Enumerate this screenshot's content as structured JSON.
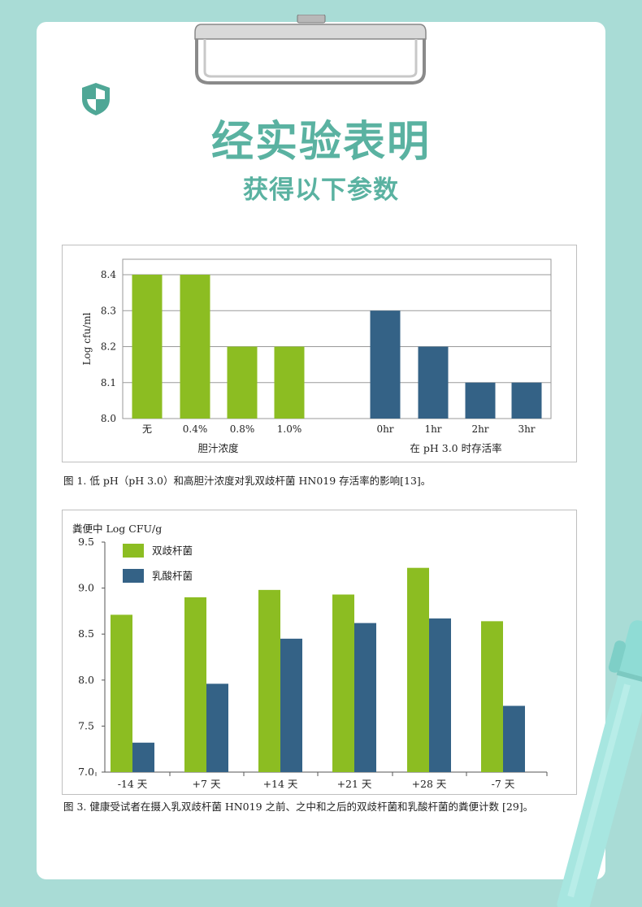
{
  "header": {
    "title": "经实验表明",
    "subtitle": "获得以下参数"
  },
  "figure1": {
    "caption": "图 1. 低 pH（pH 3.0）和高胆汁浓度对乳双歧杆菌 HN019 存活率的影响[13]。"
  },
  "figure3": {
    "caption": "图 3. 健康受试者在摄入乳双歧杆菌 HN019 之前、之中和之后的双歧杆菌和乳酸杆菌的粪便计数 [29]。"
  },
  "chart_data": [
    {
      "type": "bar",
      "ylabel": "Log cfu/ml",
      "ylim": [
        8.0,
        8.4
      ],
      "yticks": [
        "8.0",
        "8.1",
        "8.2",
        "8.3",
        "8.4"
      ],
      "grid": true,
      "groups": [
        {
          "label": "胆汁浓度",
          "color": "#8cbd22",
          "categories": [
            "无",
            "0.4%",
            "0.8%",
            "1.0%"
          ],
          "values": [
            8.4,
            8.4,
            8.2,
            8.2
          ]
        },
        {
          "label": "在 pH 3.0 时存活率",
          "color": "#346286",
          "categories": [
            "0hr",
            "1hr",
            "2hr",
            "3hr"
          ],
          "values": [
            8.3,
            8.2,
            8.1,
            8.1
          ]
        }
      ]
    },
    {
      "type": "bar",
      "ylabel": "粪便中 Log CFU/g",
      "ylim": [
        7.0,
        9.5
      ],
      "yticks": [
        "7.0",
        "7.5",
        "8.0",
        "8.5",
        "9.0",
        "9.5"
      ],
      "legend_position": "top-left",
      "categories": [
        "-14 天",
        "+7 天",
        "+14 天",
        "+21 天",
        "+28 天",
        "-7 天"
      ],
      "series": [
        {
          "name": "双歧杆菌",
          "color": "#8cbd22",
          "values": [
            8.71,
            8.9,
            8.98,
            8.93,
            9.22,
            8.64
          ]
        },
        {
          "name": "乳酸杆菌",
          "color": "#346286",
          "values": [
            7.32,
            7.96,
            8.45,
            8.62,
            8.67,
            7.72
          ]
        }
      ]
    }
  ]
}
